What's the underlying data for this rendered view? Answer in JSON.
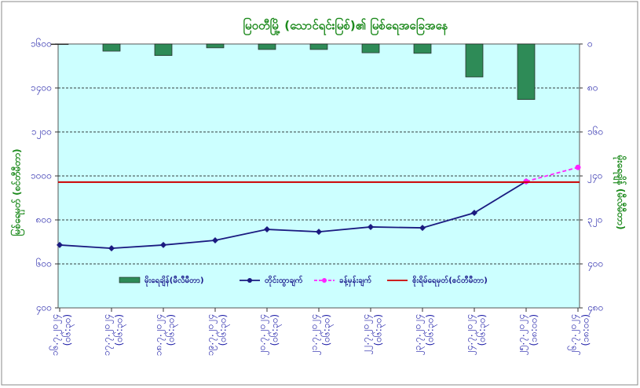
{
  "chart_data": {
    "type": "combo",
    "title": "မြဝတီမြို့ (သောင်ရင်းမြစ်)၏ မြစ်ရေအခြေအနေ",
    "y_label": "မြစ်ရေမှတ် (စင်တီမီတာ)",
    "y2_label": "မိုးရေချိန် (မီလီမီတာ)",
    "categories": [
      "၁၆.၇.၂၀၂၄",
      "၁၇.၇.၂၀၂၄",
      "၁၈.၇.၂၀၂၄",
      "၁၉.၇.၂၀၂၄",
      "၂၀.၇.၂၀၂၄",
      "၂၁.၇.၂၀၂၄",
      "၂၂.၇.၂၀၂၄",
      "၂၃.၇.၂၀၂၄",
      "၂၄.၇.၂၀၂၄",
      "၂၅.၇.၂၀၂၄",
      "၂၆.၇.၂၀၂၄"
    ],
    "category_times": [
      "(၀၆:၃၀)",
      "(၀၆:၃၀)",
      "(၀၆:၃၀)",
      "(၀၆:၃၀)",
      "(၀၆:၃၀)",
      "(၀၆:၃၀)",
      "(၀၆:၃၀)",
      "(၀၆:၃၀)",
      "(၀၆:၃၀)",
      "(၁၈:၀၀)",
      "(၁၈:၀၀)"
    ],
    "series": [
      {
        "name": "မိုးရေချိန်(မီလီမီတာ)",
        "kind": "bar",
        "axis": "y2",
        "color": "#2e8b57",
        "values": [
          1,
          13,
          21,
          7,
          10,
          10,
          16,
          17,
          60,
          101,
          null
        ]
      },
      {
        "name": "တိုင်းထွာချက်",
        "kind": "line",
        "color": "#1a1a80",
        "dash": false,
        "values": [
          686,
          671,
          686,
          707,
          757,
          746,
          768,
          764,
          832,
          975,
          null
        ]
      },
      {
        "name": "ခန့်မှန်းချက်",
        "kind": "line",
        "color": "#ff22ff",
        "dash": true,
        "values": [
          null,
          null,
          null,
          null,
          null,
          null,
          null,
          null,
          null,
          975,
          1039
        ]
      },
      {
        "name": "စိုးရိမ်ရေမှတ်(စင်တီမီတာ)",
        "kind": "hline",
        "color": "#cc0000",
        "value": 972
      }
    ],
    "ylim": [
      400,
      1600
    ],
    "yticks": [
      {
        "value": 400,
        "label": "၄၀၀"
      },
      {
        "value": 600,
        "label": "၆၀၀"
      },
      {
        "value": 800,
        "label": "၈၀၀"
      },
      {
        "value": 1000,
        "label": "၁၀၀၀"
      },
      {
        "value": 1200,
        "label": "၁၂၀၀"
      },
      {
        "value": 1400,
        "label": "၁၄၀၀"
      },
      {
        "value": 1600,
        "label": "၁၆၀၀"
      }
    ],
    "y2lim": [
      0,
      480
    ],
    "y2_inverted": true,
    "y2ticks": [
      {
        "value": 0,
        "label": "၀"
      },
      {
        "value": 80,
        "label": "၈၀"
      },
      {
        "value": 160,
        "label": "၁၆၀"
      },
      {
        "value": 240,
        "label": "၂၄၀"
      },
      {
        "value": 320,
        "label": "၃၂၀"
      },
      {
        "value": 400,
        "label": "၄၀၀"
      },
      {
        "value": 480,
        "label": "၄၈၀"
      }
    ],
    "grid": true,
    "legend": "bottom",
    "background": "#ccffff"
  }
}
